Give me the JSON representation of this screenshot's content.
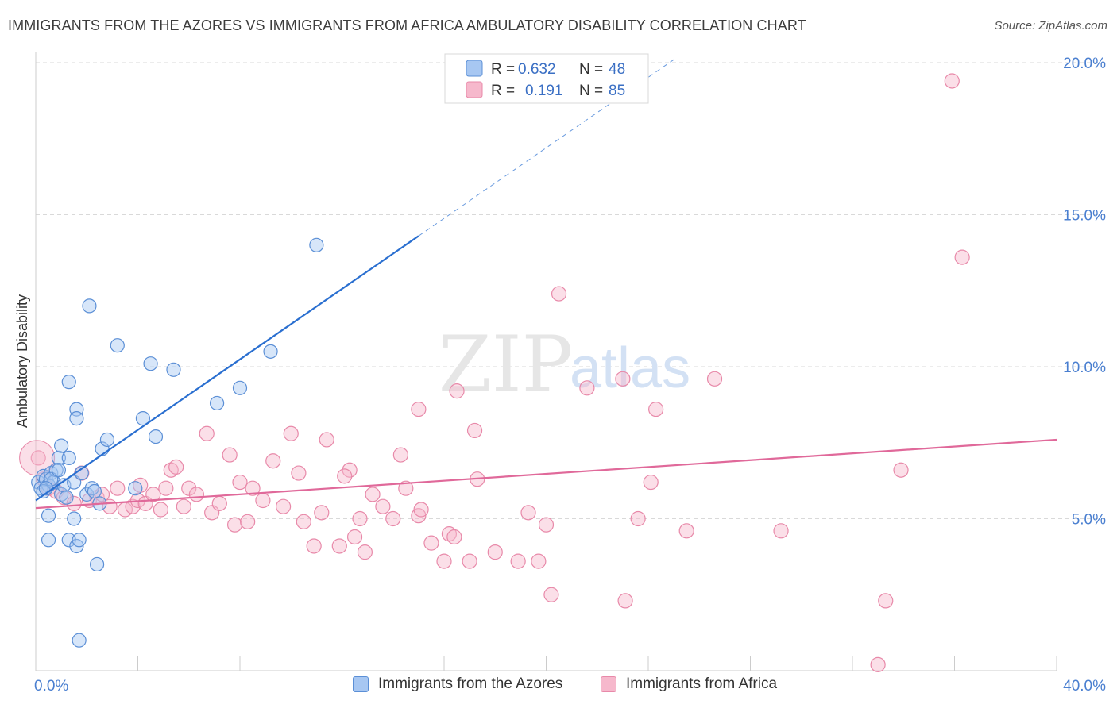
{
  "header": {
    "title": "IMMIGRANTS FROM THE AZORES VS IMMIGRANTS FROM AFRICA AMBULATORY DISABILITY CORRELATION CHART",
    "source": "Source: ZipAtlas.com"
  },
  "watermark": {
    "zip": "ZIP",
    "atlas": "atlas"
  },
  "colors": {
    "azores_fill": "#a7c7f2",
    "azores_stroke": "#5b8fd6",
    "azores_line": "#2a6fd0",
    "africa_fill": "#f6b8cc",
    "africa_stroke": "#e889a9",
    "africa_line": "#e0699a",
    "axis_text": "#4a7fd0",
    "grid": "#d9d9d9"
  },
  "legend_top": {
    "rows": [
      {
        "r_label": "R =",
        "r_value": "0.632",
        "n_label": "N =",
        "n_value": "48"
      },
      {
        "r_label": "R =",
        "r_value": "0.191",
        "n_label": "N =",
        "n_value": "85"
      }
    ]
  },
  "legend_bottom": {
    "items": [
      {
        "label": "Immigrants from the Azores"
      },
      {
        "label": "Immigrants from Africa"
      }
    ]
  },
  "chart_data": {
    "type": "scatter",
    "title": "IMMIGRANTS FROM THE AZORES VS IMMIGRANTS FROM AFRICA AMBULATORY DISABILITY CORRELATION CHART",
    "xlabel": "",
    "ylabel": "Ambulatory Disability",
    "xlim": [
      0,
      40
    ],
    "ylim": [
      0,
      20.5
    ],
    "x_tick_labels": [
      "0.0%",
      "40.0%"
    ],
    "y_tick_values": [
      5,
      10,
      15,
      20
    ],
    "y_tick_labels": [
      "5.0%",
      "10.0%",
      "15.0%",
      "20.0%"
    ],
    "grid": true,
    "legend_position": "top-center",
    "series": [
      {
        "name": "Immigrants from the Azores",
        "r": 0.632,
        "n": 48,
        "trend": {
          "x0": 0,
          "y0": 5.6,
          "x1": 15.0,
          "y1": 14.3,
          "dashed_to_x": 25.0,
          "dashed_to_y": 20.1
        },
        "points": [
          [
            0.1,
            6.2
          ],
          [
            0.2,
            6.0
          ],
          [
            0.3,
            6.4
          ],
          [
            0.4,
            6.3
          ],
          [
            0.5,
            6.1
          ],
          [
            0.6,
            6.5
          ],
          [
            0.7,
            6.2
          ],
          [
            0.8,
            6.6
          ],
          [
            0.9,
            7.0
          ],
          [
            1.0,
            5.8
          ],
          [
            1.1,
            6.1
          ],
          [
            1.0,
            7.4
          ],
          [
            1.3,
            7.0
          ],
          [
            1.5,
            6.2
          ],
          [
            1.6,
            8.6
          ],
          [
            1.6,
            8.3
          ],
          [
            1.8,
            6.5
          ],
          [
            2.0,
            5.8
          ],
          [
            2.1,
            12.0
          ],
          [
            2.2,
            6.0
          ],
          [
            2.3,
            5.9
          ],
          [
            2.5,
            5.5
          ],
          [
            2.6,
            7.3
          ],
          [
            2.8,
            7.6
          ],
          [
            3.2,
            10.7
          ],
          [
            3.9,
            6.0
          ],
          [
            4.2,
            8.3
          ],
          [
            4.5,
            10.1
          ],
          [
            4.7,
            7.7
          ],
          [
            5.4,
            9.9
          ],
          [
            7.1,
            8.8
          ],
          [
            8.0,
            9.3
          ],
          [
            9.2,
            10.5
          ],
          [
            11.0,
            14.0
          ],
          [
            1.3,
            9.5
          ],
          [
            0.5,
            5.1
          ],
          [
            0.5,
            4.3
          ],
          [
            1.5,
            5.0
          ],
          [
            1.3,
            4.3
          ],
          [
            1.6,
            4.1
          ],
          [
            1.7,
            4.3
          ],
          [
            2.4,
            3.5
          ],
          [
            1.7,
            1.0
          ],
          [
            0.3,
            5.9
          ],
          [
            0.6,
            6.3
          ],
          [
            1.2,
            5.7
          ],
          [
            0.9,
            6.6
          ],
          [
            0.4,
            6.0
          ]
        ]
      },
      {
        "name": "Immigrants from Africa",
        "r": 0.191,
        "n": 85,
        "trend": {
          "x0": 0,
          "y0": 5.35,
          "x1": 40.0,
          "y1": 7.6
        },
        "points": [
          [
            0.1,
            7.0
          ],
          [
            0.3,
            6.3
          ],
          [
            0.5,
            6.0
          ],
          [
            0.8,
            5.9
          ],
          [
            1.1,
            5.7
          ],
          [
            1.5,
            5.5
          ],
          [
            1.8,
            6.5
          ],
          [
            2.1,
            5.6
          ],
          [
            2.4,
            5.7
          ],
          [
            2.6,
            5.8
          ],
          [
            2.9,
            5.4
          ],
          [
            3.2,
            6.0
          ],
          [
            3.5,
            5.3
          ],
          [
            3.8,
            5.4
          ],
          [
            4.0,
            5.6
          ],
          [
            4.1,
            6.1
          ],
          [
            4.3,
            5.5
          ],
          [
            4.6,
            5.8
          ],
          [
            4.9,
            5.3
          ],
          [
            5.1,
            6.0
          ],
          [
            5.3,
            6.6
          ],
          [
            5.5,
            6.7
          ],
          [
            5.8,
            5.4
          ],
          [
            6.0,
            6.0
          ],
          [
            6.3,
            5.8
          ],
          [
            6.7,
            7.8
          ],
          [
            6.9,
            5.2
          ],
          [
            7.2,
            5.5
          ],
          [
            7.6,
            7.1
          ],
          [
            7.8,
            4.8
          ],
          [
            8.0,
            6.2
          ],
          [
            8.3,
            4.9
          ],
          [
            8.5,
            6.0
          ],
          [
            8.9,
            5.6
          ],
          [
            9.3,
            6.9
          ],
          [
            9.7,
            5.4
          ],
          [
            10.0,
            7.8
          ],
          [
            10.3,
            6.5
          ],
          [
            10.5,
            4.9
          ],
          [
            10.9,
            4.1
          ],
          [
            11.2,
            5.2
          ],
          [
            11.4,
            7.6
          ],
          [
            11.9,
            4.1
          ],
          [
            12.3,
            6.6
          ],
          [
            12.5,
            4.4
          ],
          [
            12.7,
            5.0
          ],
          [
            12.9,
            3.9
          ],
          [
            13.2,
            5.8
          ],
          [
            13.6,
            5.4
          ],
          [
            14.0,
            5.0
          ],
          [
            14.3,
            7.1
          ],
          [
            14.5,
            6.0
          ],
          [
            15.0,
            5.1
          ],
          [
            15.1,
            5.3
          ],
          [
            15.5,
            4.2
          ],
          [
            16.0,
            3.6
          ],
          [
            16.2,
            4.5
          ],
          [
            16.4,
            4.4
          ],
          [
            16.5,
            9.2
          ],
          [
            17.0,
            3.6
          ],
          [
            17.3,
            6.3
          ],
          [
            18.0,
            3.9
          ],
          [
            18.9,
            3.6
          ],
          [
            19.3,
            5.2
          ],
          [
            19.7,
            3.6
          ],
          [
            20.0,
            4.8
          ],
          [
            20.5,
            12.4
          ],
          [
            20.2,
            2.5
          ],
          [
            21.6,
            9.3
          ],
          [
            23.0,
            9.6
          ],
          [
            23.1,
            2.3
          ],
          [
            23.6,
            5.0
          ],
          [
            24.1,
            6.2
          ],
          [
            24.3,
            8.6
          ],
          [
            25.5,
            4.6
          ],
          [
            26.6,
            9.6
          ],
          [
            29.2,
            4.6
          ],
          [
            33.3,
            2.3
          ],
          [
            33.0,
            0.2
          ],
          [
            33.9,
            6.6
          ],
          [
            35.9,
            19.4
          ],
          [
            36.3,
            13.6
          ],
          [
            15.0,
            8.6
          ],
          [
            17.2,
            7.9
          ],
          [
            12.1,
            6.4
          ]
        ]
      }
    ]
  }
}
